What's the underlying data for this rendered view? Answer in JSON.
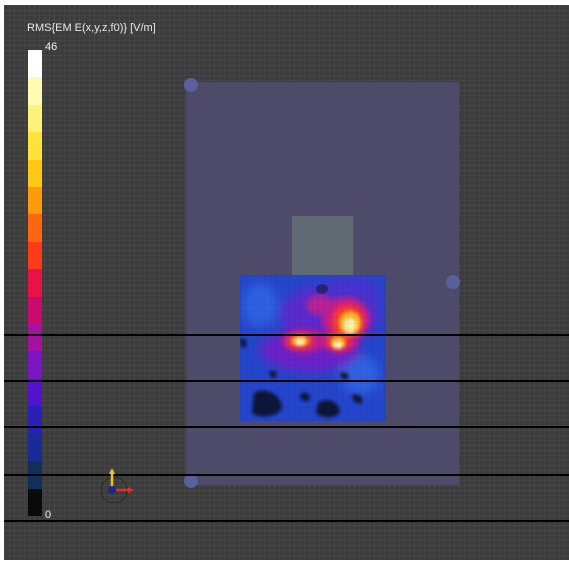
{
  "colorbar": {
    "title": "RMS{EM E(x,y,z,f0)} [V/m]",
    "max_label": "46",
    "min_label": "0",
    "colors": [
      "#ffffff",
      "#fffbb0",
      "#fff27a",
      "#ffe33a",
      "#ffc613",
      "#ff9a0a",
      "#ff6610",
      "#ff3a18",
      "#e8114a",
      "#cc0a6e",
      "#a810a4",
      "#7c14c4",
      "#5312cc",
      "#2a20b8",
      "#1a2a98",
      "#10305a",
      "#0a0a0a"
    ]
  },
  "scene": {
    "domain_color": "#4d4a6a",
    "corner_marker_color": "#5a5f9e",
    "phone_color": "#5f6a72",
    "scan_line_color": "#000000",
    "scan_line_count": 5
  },
  "axis_triad": {
    "x_color": "#e0302a",
    "y_color": "#f0c020",
    "z_color": "#1a2a8a"
  }
}
